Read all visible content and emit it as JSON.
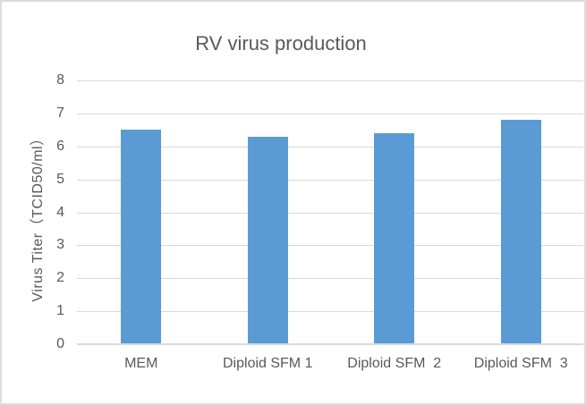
{
  "window": {
    "background": "#ffffff",
    "border_color": "#DCDCDC"
  },
  "chart_data": {
    "type": "bar",
    "title": "RV virus production",
    "categories": [
      "MEM",
      "Diploid SFM 1",
      "Diploid SFM  2",
      "Diploid SFM  3"
    ],
    "values": [
      6.5,
      6.3,
      6.4,
      6.8
    ],
    "xlabel": "",
    "ylabel": "Virus Titer（TCID50/ml）",
    "ylim": [
      0,
      8
    ],
    "ytick_step": 1,
    "ytick_labels": [
      "0",
      "1",
      "2",
      "3",
      "4",
      "5",
      "6",
      "7",
      "8"
    ],
    "grid": true,
    "legend": false,
    "colors": {
      "bar": "#5B9BD5",
      "gridline": "#D9D9D9",
      "axis_line": "#D9D9D9",
      "text": "#595959"
    }
  }
}
